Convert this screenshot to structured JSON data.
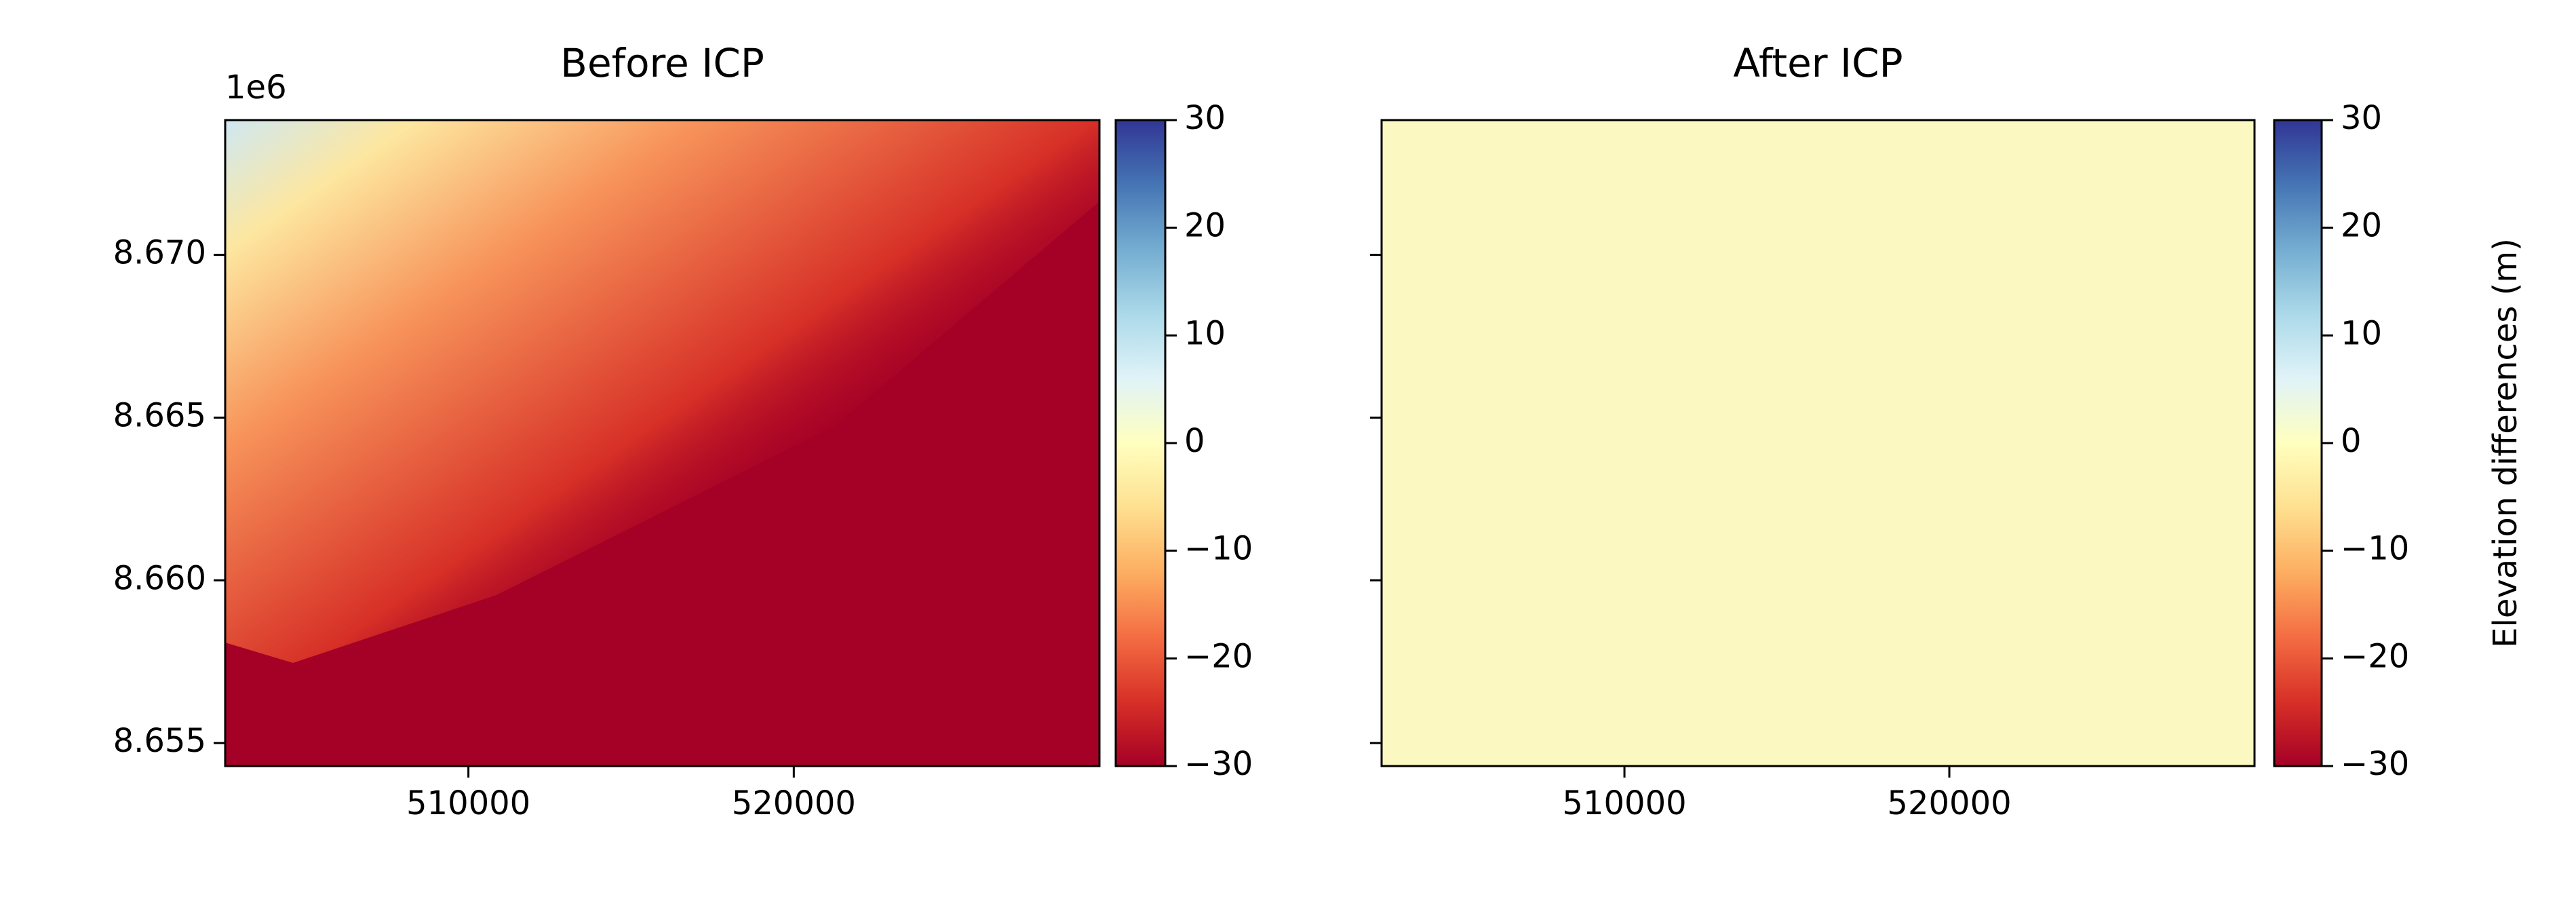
{
  "chart_data": [
    {
      "type": "heatmap",
      "title": "Before ICP",
      "colormap": "RdYlBu",
      "field": "before",
      "xlim": [
        502525,
        529394
      ],
      "xticks": [
        510000,
        520000
      ],
      "ylim": [
        8654293,
        8674141
      ],
      "y_offset_label": "1e6",
      "yticks": [
        {
          "value": 8655000,
          "label": "8.655"
        },
        {
          "value": 8660000,
          "label": "8.660"
        },
        {
          "value": 8665000,
          "label": "8.665"
        },
        {
          "value": 8670000,
          "label": "8.670"
        }
      ],
      "show_ytick_labels": true,
      "colorbar": {
        "lim": [
          -30,
          30
        ],
        "ticks": [
          {
            "value": -30,
            "label": "−30"
          },
          {
            "value": -20,
            "label": "−20"
          },
          {
            "value": -10,
            "label": "−10"
          },
          0,
          10,
          20,
          30
        ]
      }
    },
    {
      "type": "heatmap",
      "title": "After ICP",
      "colormap": "RdYlBu",
      "field": "after",
      "xlim": [
        502525,
        529394
      ],
      "xticks": [
        510000,
        520000
      ],
      "ylim": [
        8654293,
        8674141
      ],
      "yticks": [
        8655000,
        8660000,
        8665000,
        8670000
      ],
      "show_ytick_labels": false,
      "colorbar": {
        "lim": [
          -30,
          30
        ],
        "label": "Elevation differences (m)",
        "ticks": [
          {
            "value": -30,
            "label": "−30"
          },
          {
            "value": -20,
            "label": "−20"
          },
          {
            "value": -10,
            "label": "−10"
          },
          0,
          10,
          20,
          30
        ]
      }
    }
  ]
}
